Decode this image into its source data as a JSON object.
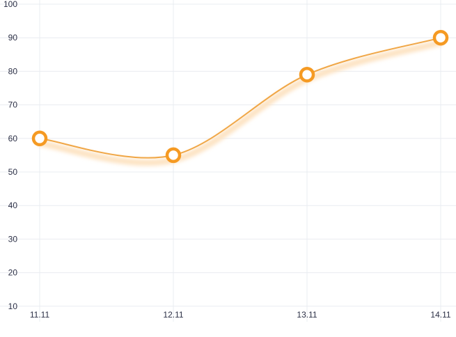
{
  "chart_data": {
    "type": "line",
    "title": "",
    "xlabel": "",
    "ylabel": "",
    "categories": [
      "11.11",
      "12.11",
      "13.11",
      "14.11"
    ],
    "series": [
      {
        "values": [
          60,
          55,
          79,
          90
        ]
      }
    ],
    "ylim": [
      0,
      100
    ],
    "yticks": [
      10,
      20,
      30,
      40,
      50,
      60,
      70,
      80,
      90,
      100
    ],
    "grid": true,
    "line_color": "#f0a645",
    "marker_color": "#f59a23",
    "shadow_color": "#fde3c2"
  }
}
